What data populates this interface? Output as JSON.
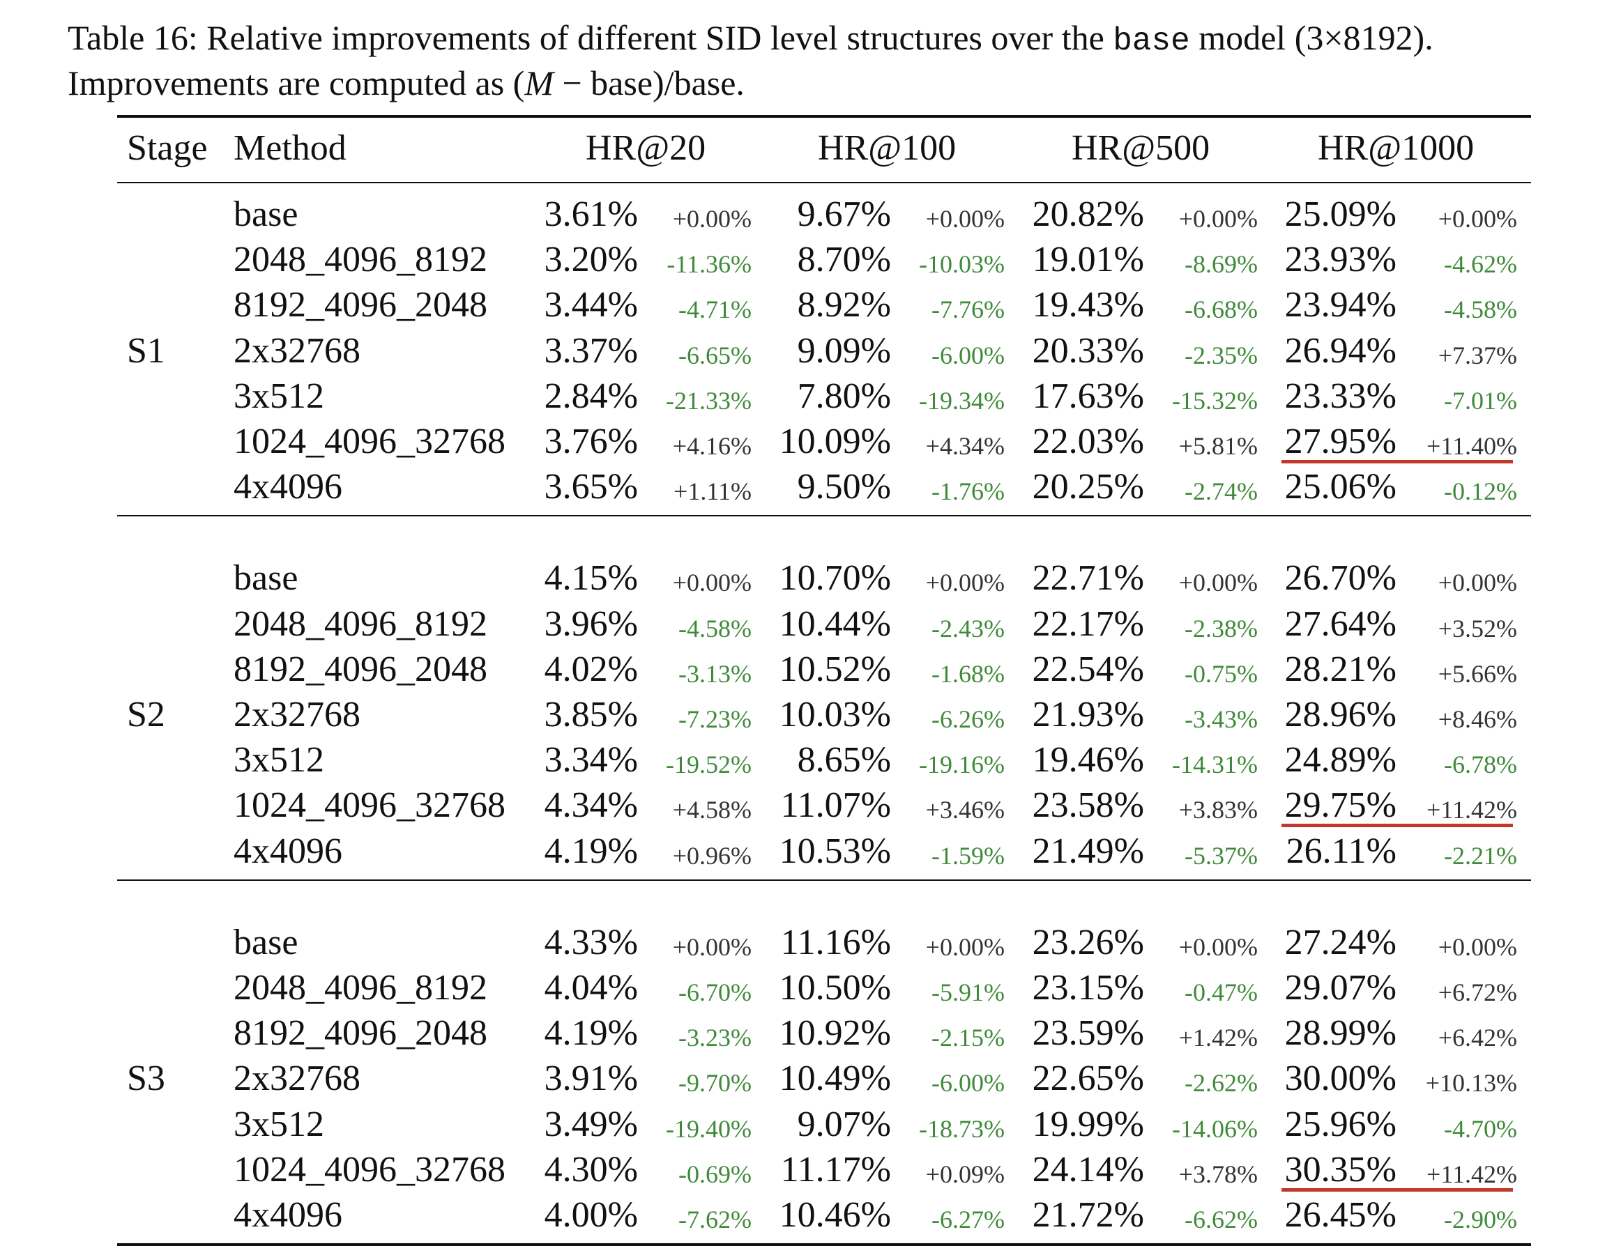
{
  "caption": {
    "line1_a": "Table 16: Relative improvements of different SID level structures over the ",
    "line1_mono": "base",
    "line1_b": " model (3×8192).",
    "line2_a": "Improvements are computed as (",
    "line2_math": "M",
    "line2_b": " − base)/base."
  },
  "headers": {
    "stage": "Stage",
    "method": "Method",
    "hr20": "HR@20",
    "hr100": "HR@100",
    "hr500": "HR@500",
    "hr1000": "HR@1000"
  },
  "colors": {
    "negative_delta": "#3f8a3a",
    "positive_delta": "#333333",
    "highlight_underline": "#c0392b"
  },
  "stages": [
    {
      "label": "S1",
      "rows": [
        {
          "method": "base",
          "cells": [
            [
              "3.61%",
              "+0.00%"
            ],
            [
              "9.67%",
              "+0.00%"
            ],
            [
              "20.82%",
              "+0.00%"
            ],
            [
              "25.09%",
              "+0.00%"
            ]
          ]
        },
        {
          "method": "2048_4096_8192",
          "cells": [
            [
              "3.20%",
              "-11.36%"
            ],
            [
              "8.70%",
              "-10.03%"
            ],
            [
              "19.01%",
              "-8.69%"
            ],
            [
              "23.93%",
              "-4.62%"
            ]
          ]
        },
        {
          "method": "8192_4096_2048",
          "cells": [
            [
              "3.44%",
              "-4.71%"
            ],
            [
              "8.92%",
              "-7.76%"
            ],
            [
              "19.43%",
              "-6.68%"
            ],
            [
              "23.94%",
              "-4.58%"
            ]
          ]
        },
        {
          "method": "2x32768",
          "cells": [
            [
              "3.37%",
              "-6.65%"
            ],
            [
              "9.09%",
              "-6.00%"
            ],
            [
              "20.33%",
              "-2.35%"
            ],
            [
              "26.94%",
              "+7.37%"
            ]
          ]
        },
        {
          "method": "3x512",
          "cells": [
            [
              "2.84%",
              "-21.33%"
            ],
            [
              "7.80%",
              "-19.34%"
            ],
            [
              "17.63%",
              "-15.32%"
            ],
            [
              "23.33%",
              "-7.01%"
            ]
          ]
        },
        {
          "method": "1024_4096_32768",
          "cells": [
            [
              "3.76%",
              "+4.16%"
            ],
            [
              "10.09%",
              "+4.34%"
            ],
            [
              "22.03%",
              "+5.81%"
            ],
            [
              "27.95%",
              "+11.40%"
            ]
          ],
          "highlight": true
        },
        {
          "method": "4x4096",
          "cells": [
            [
              "3.65%",
              "+1.11%"
            ],
            [
              "9.50%",
              "-1.76%"
            ],
            [
              "20.25%",
              "-2.74%"
            ],
            [
              "25.06%",
              "-0.12%"
            ]
          ]
        }
      ]
    },
    {
      "label": "S2",
      "rows": [
        {
          "method": "base",
          "cells": [
            [
              "4.15%",
              "+0.00%"
            ],
            [
              "10.70%",
              "+0.00%"
            ],
            [
              "22.71%",
              "+0.00%"
            ],
            [
              "26.70%",
              "+0.00%"
            ]
          ]
        },
        {
          "method": "2048_4096_8192",
          "cells": [
            [
              "3.96%",
              "-4.58%"
            ],
            [
              "10.44%",
              "-2.43%"
            ],
            [
              "22.17%",
              "-2.38%"
            ],
            [
              "27.64%",
              "+3.52%"
            ]
          ]
        },
        {
          "method": "8192_4096_2048",
          "cells": [
            [
              "4.02%",
              "-3.13%"
            ],
            [
              "10.52%",
              "-1.68%"
            ],
            [
              "22.54%",
              "-0.75%"
            ],
            [
              "28.21%",
              "+5.66%"
            ]
          ]
        },
        {
          "method": "2x32768",
          "cells": [
            [
              "3.85%",
              "-7.23%"
            ],
            [
              "10.03%",
              "-6.26%"
            ],
            [
              "21.93%",
              "-3.43%"
            ],
            [
              "28.96%",
              "+8.46%"
            ]
          ]
        },
        {
          "method": "3x512",
          "cells": [
            [
              "3.34%",
              "-19.52%"
            ],
            [
              "8.65%",
              "-19.16%"
            ],
            [
              "19.46%",
              "-14.31%"
            ],
            [
              "24.89%",
              "-6.78%"
            ]
          ]
        },
        {
          "method": "1024_4096_32768",
          "cells": [
            [
              "4.34%",
              "+4.58%"
            ],
            [
              "11.07%",
              "+3.46%"
            ],
            [
              "23.58%",
              "+3.83%"
            ],
            [
              "29.75%",
              "+11.42%"
            ]
          ],
          "highlight": true
        },
        {
          "method": "4x4096",
          "cells": [
            [
              "4.19%",
              "+0.96%"
            ],
            [
              "10.53%",
              "-1.59%"
            ],
            [
              "21.49%",
              "-5.37%"
            ],
            [
              "26.11%",
              "-2.21%"
            ]
          ]
        }
      ]
    },
    {
      "label": "S3",
      "rows": [
        {
          "method": "base",
          "cells": [
            [
              "4.33%",
              "+0.00%"
            ],
            [
              "11.16%",
              "+0.00%"
            ],
            [
              "23.26%",
              "+0.00%"
            ],
            [
              "27.24%",
              "+0.00%"
            ]
          ]
        },
        {
          "method": "2048_4096_8192",
          "cells": [
            [
              "4.04%",
              "-6.70%"
            ],
            [
              "10.50%",
              "-5.91%"
            ],
            [
              "23.15%",
              "-0.47%"
            ],
            [
              "29.07%",
              "+6.72%"
            ]
          ]
        },
        {
          "method": "8192_4096_2048",
          "cells": [
            [
              "4.19%",
              "-3.23%"
            ],
            [
              "10.92%",
              "-2.15%"
            ],
            [
              "23.59%",
              "+1.42%"
            ],
            [
              "28.99%",
              "+6.42%"
            ]
          ]
        },
        {
          "method": "2x32768",
          "cells": [
            [
              "3.91%",
              "-9.70%"
            ],
            [
              "10.49%",
              "-6.00%"
            ],
            [
              "22.65%",
              "-2.62%"
            ],
            [
              "30.00%",
              "+10.13%"
            ]
          ]
        },
        {
          "method": "3x512",
          "cells": [
            [
              "3.49%",
              "-19.40%"
            ],
            [
              "9.07%",
              "-18.73%"
            ],
            [
              "19.99%",
              "-14.06%"
            ],
            [
              "25.96%",
              "-4.70%"
            ]
          ]
        },
        {
          "method": "1024_4096_32768",
          "cells": [
            [
              "4.30%",
              "-0.69%"
            ],
            [
              "11.17%",
              "+0.09%"
            ],
            [
              "24.14%",
              "+3.78%"
            ],
            [
              "30.35%",
              "+11.42%"
            ]
          ],
          "highlight": true
        },
        {
          "method": "4x4096",
          "cells": [
            [
              "4.00%",
              "-7.62%"
            ],
            [
              "10.46%",
              "-6.27%"
            ],
            [
              "21.72%",
              "-6.62%"
            ],
            [
              "26.45%",
              "-2.90%"
            ]
          ]
        }
      ]
    }
  ]
}
